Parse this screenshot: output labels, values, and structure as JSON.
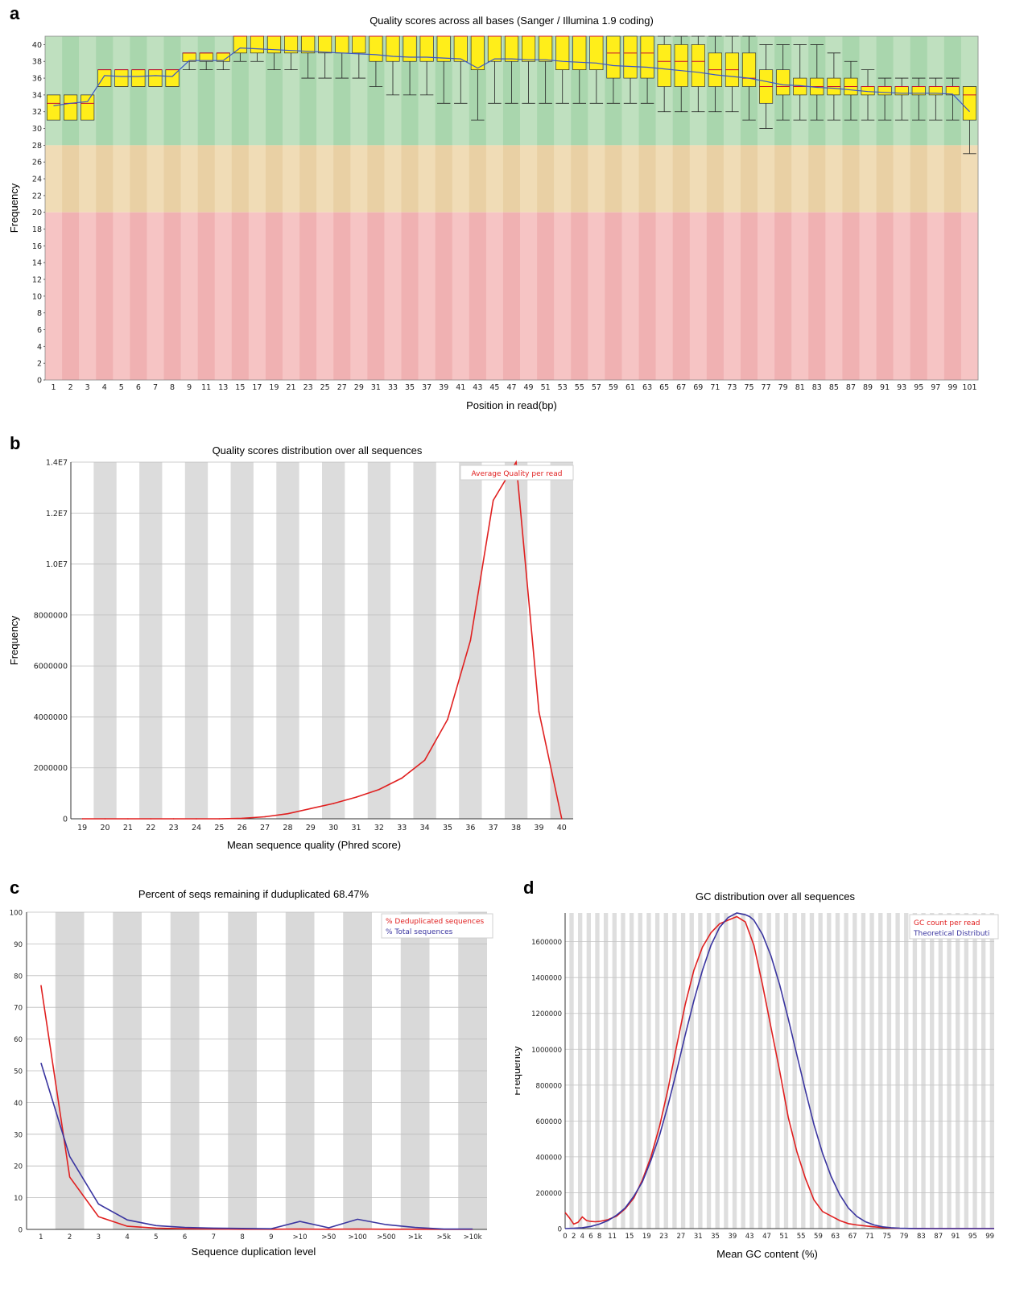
{
  "chart_data": [
    {
      "panel": "a",
      "type": "boxplot",
      "title": "Quality scores across all bases (Sanger / Illumina 1.9 coding)",
      "xlabel": "Position in read(bp)",
      "ylabel": "Frequency",
      "ylim": [
        0,
        41
      ],
      "yticks": [
        0,
        2,
        4,
        6,
        8,
        10,
        12,
        14,
        16,
        18,
        20,
        22,
        24,
        26,
        28,
        30,
        32,
        34,
        36,
        38,
        40
      ],
      "xtick_labels": [
        "1",
        "2",
        "3",
        "4",
        "5",
        "6",
        "7",
        "8",
        "9",
        "11",
        "13",
        "15",
        "17",
        "19",
        "21",
        "23",
        "25",
        "27",
        "29",
        "31",
        "33",
        "35",
        "37",
        "39",
        "41",
        "43",
        "45",
        "47",
        "49",
        "51",
        "53",
        "55",
        "57",
        "59",
        "61",
        "63",
        "65",
        "67",
        "69",
        "71",
        "73",
        "75",
        "77",
        "79",
        "81",
        "83",
        "85",
        "87",
        "89",
        "91",
        "93",
        "95",
        "97",
        "99",
        "101"
      ],
      "zones": [
        {
          "from": 28,
          "to": 41,
          "color": "#bfe0bf",
          "alt_color": "#a9d6ad"
        },
        {
          "from": 20,
          "to": 28,
          "color": "#f0dcb6",
          "alt_color": "#e9d0a4"
        },
        {
          "from": 0,
          "to": 20,
          "color": "#f6c4c4",
          "alt_color": "#f0b1b2"
        }
      ],
      "box_color": "#ffee1a",
      "median_color": "#c8102e",
      "mean_color": "#3b55c6",
      "boxes": [
        {
          "q1": 31,
          "q3": 34,
          "med": 33,
          "lo": 31,
          "hi": 34,
          "mean": 32.7
        },
        {
          "q1": 31,
          "q3": 34,
          "med": 33,
          "lo": 31,
          "hi": 34,
          "mean": 33.0
        },
        {
          "q1": 31,
          "q3": 34,
          "med": 33,
          "lo": 31,
          "hi": 34,
          "mean": 33.2
        },
        {
          "q1": 35,
          "q3": 37,
          "med": 37,
          "lo": 35,
          "hi": 37,
          "mean": 36.3
        },
        {
          "q1": 35,
          "q3": 37,
          "med": 37,
          "lo": 35,
          "hi": 37,
          "mean": 36.2
        },
        {
          "q1": 35,
          "q3": 37,
          "med": 37,
          "lo": 35,
          "hi": 37,
          "mean": 36.2
        },
        {
          "q1": 35,
          "q3": 37,
          "med": 37,
          "lo": 35,
          "hi": 37,
          "mean": 36.3
        },
        {
          "q1": 35,
          "q3": 37,
          "med": 37,
          "lo": 35,
          "hi": 37,
          "mean": 36.2
        },
        {
          "q1": 38,
          "q3": 39,
          "med": 39,
          "lo": 37,
          "hi": 39,
          "mean": 38.1
        },
        {
          "q1": 38,
          "q3": 39,
          "med": 39,
          "lo": 37,
          "hi": 39,
          "mean": 38.1
        },
        {
          "q1": 38,
          "q3": 39,
          "med": 39,
          "lo": 37,
          "hi": 39,
          "mean": 38.1
        },
        {
          "q1": 39,
          "q3": 41,
          "med": 41,
          "lo": 38,
          "hi": 41,
          "mean": 39.6
        },
        {
          "q1": 39,
          "q3": 41,
          "med": 41,
          "lo": 38,
          "hi": 41,
          "mean": 39.5
        },
        {
          "q1": 39,
          "q3": 41,
          "med": 41,
          "lo": 37,
          "hi": 41,
          "mean": 39.4
        },
        {
          "q1": 39,
          "q3": 41,
          "med": 41,
          "lo": 37,
          "hi": 41,
          "mean": 39.3
        },
        {
          "q1": 39,
          "q3": 41,
          "med": 41,
          "lo": 36,
          "hi": 41,
          "mean": 39.2
        },
        {
          "q1": 39,
          "q3": 41,
          "med": 41,
          "lo": 36,
          "hi": 41,
          "mean": 39.1
        },
        {
          "q1": 39,
          "q3": 41,
          "med": 41,
          "lo": 36,
          "hi": 41,
          "mean": 39.0
        },
        {
          "q1": 39,
          "q3": 41,
          "med": 41,
          "lo": 36,
          "hi": 41,
          "mean": 38.9
        },
        {
          "q1": 38,
          "q3": 41,
          "med": 41,
          "lo": 35,
          "hi": 41,
          "mean": 38.8
        },
        {
          "q1": 38,
          "q3": 41,
          "med": 41,
          "lo": 34,
          "hi": 41,
          "mean": 38.6
        },
        {
          "q1": 38,
          "q3": 41,
          "med": 41,
          "lo": 34,
          "hi": 41,
          "mean": 38.5
        },
        {
          "q1": 38,
          "q3": 41,
          "med": 41,
          "lo": 34,
          "hi": 41,
          "mean": 38.5
        },
        {
          "q1": 38,
          "q3": 41,
          "med": 41,
          "lo": 33,
          "hi": 41,
          "mean": 38.4
        },
        {
          "q1": 38,
          "q3": 41,
          "med": 41,
          "lo": 33,
          "hi": 41,
          "mean": 38.3
        },
        {
          "q1": 37,
          "q3": 41,
          "med": 41,
          "lo": 31,
          "hi": 41,
          "mean": 37.2
        },
        {
          "q1": 38,
          "q3": 41,
          "med": 41,
          "lo": 33,
          "hi": 41,
          "mean": 38.3
        },
        {
          "q1": 38,
          "q3": 41,
          "med": 41,
          "lo": 33,
          "hi": 41,
          "mean": 38.3
        },
        {
          "q1": 38,
          "q3": 41,
          "med": 41,
          "lo": 33,
          "hi": 41,
          "mean": 38.2
        },
        {
          "q1": 38,
          "q3": 41,
          "med": 41,
          "lo": 33,
          "hi": 41,
          "mean": 38.2
        },
        {
          "q1": 37,
          "q3": 41,
          "med": 41,
          "lo": 33,
          "hi": 41,
          "mean": 38.0
        },
        {
          "q1": 37,
          "q3": 41,
          "med": 41,
          "lo": 33,
          "hi": 41,
          "mean": 37.9
        },
        {
          "q1": 37,
          "q3": 41,
          "med": 41,
          "lo": 33,
          "hi": 41,
          "mean": 37.8
        },
        {
          "q1": 36,
          "q3": 41,
          "med": 39,
          "lo": 33,
          "hi": 41,
          "mean": 37.5
        },
        {
          "q1": 36,
          "q3": 41,
          "med": 39,
          "lo": 33,
          "hi": 41,
          "mean": 37.4
        },
        {
          "q1": 36,
          "q3": 41,
          "med": 39,
          "lo": 33,
          "hi": 41,
          "mean": 37.3
        },
        {
          "q1": 35,
          "q3": 40,
          "med": 38,
          "lo": 32,
          "hi": 41,
          "mean": 37.1
        },
        {
          "q1": 35,
          "q3": 40,
          "med": 38,
          "lo": 32,
          "hi": 41,
          "mean": 36.9
        },
        {
          "q1": 35,
          "q3": 40,
          "med": 38,
          "lo": 32,
          "hi": 41,
          "mean": 36.7
        },
        {
          "q1": 35,
          "q3": 39,
          "med": 37,
          "lo": 32,
          "hi": 41,
          "mean": 36.4
        },
        {
          "q1": 35,
          "q3": 39,
          "med": 37,
          "lo": 32,
          "hi": 41,
          "mean": 36.2
        },
        {
          "q1": 35,
          "q3": 39,
          "med": 36,
          "lo": 31,
          "hi": 41,
          "mean": 36.0
        },
        {
          "q1": 33,
          "q3": 37,
          "med": 35,
          "lo": 30,
          "hi": 40,
          "mean": 35.6
        },
        {
          "q1": 34,
          "q3": 37,
          "med": 35,
          "lo": 31,
          "hi": 40,
          "mean": 35.2
        },
        {
          "q1": 34,
          "q3": 36,
          "med": 35,
          "lo": 31,
          "hi": 40,
          "mean": 35.1
        },
        {
          "q1": 34,
          "q3": 36,
          "med": 35,
          "lo": 31,
          "hi": 40,
          "mean": 34.9
        },
        {
          "q1": 34,
          "q3": 36,
          "med": 35,
          "lo": 31,
          "hi": 39,
          "mean": 34.8
        },
        {
          "q1": 34,
          "q3": 36,
          "med": 35,
          "lo": 31,
          "hi": 38,
          "mean": 34.6
        },
        {
          "q1": 34,
          "q3": 35,
          "med": 35,
          "lo": 31,
          "hi": 37,
          "mean": 34.4
        },
        {
          "q1": 34,
          "q3": 35,
          "med": 35,
          "lo": 31,
          "hi": 36,
          "mean": 34.3
        },
        {
          "q1": 34,
          "q3": 35,
          "med": 35,
          "lo": 31,
          "hi": 36,
          "mean": 34.2
        },
        {
          "q1": 34,
          "q3": 35,
          "med": 35,
          "lo": 31,
          "hi": 36,
          "mean": 34.2
        },
        {
          "q1": 34,
          "q3": 35,
          "med": 35,
          "lo": 31,
          "hi": 36,
          "mean": 34.2
        },
        {
          "q1": 34,
          "q3": 35,
          "med": 35,
          "lo": 31,
          "hi": 36,
          "mean": 34.1
        },
        {
          "q1": 31,
          "q3": 35,
          "med": 34,
          "lo": 27,
          "hi": 35,
          "mean": 32.0
        }
      ]
    },
    {
      "panel": "b",
      "type": "line",
      "title": "Quality scores distribution over all sequences",
      "xlabel": "Mean sequence quality (Phred score)",
      "ylabel": "Frequency",
      "x": [
        19,
        20,
        21,
        22,
        23,
        24,
        25,
        26,
        27,
        28,
        29,
        30,
        31,
        32,
        33,
        34,
        35,
        36,
        37,
        38,
        39,
        40
      ],
      "xlim": [
        18.5,
        40.5
      ],
      "ylim": [
        0,
        14000000
      ],
      "ytick_values": [
        0,
        2000000,
        4000000,
        6000000,
        8000000,
        10000000,
        12000000,
        14000000
      ],
      "ytick_labels": [
        "0",
        "2000000",
        "4000000",
        "6000000",
        "8000000",
        "1.0E7",
        "1.2E7",
        "1.4E7"
      ],
      "series": [
        {
          "name": "Average Quality per read",
          "color": "#e02020",
          "values": [
            0,
            0,
            0,
            0,
            0,
            0,
            0,
            20000,
            80000,
            200000,
            400000,
            600000,
            850000,
            1150000,
            1600000,
            2300000,
            3900000,
            7000000,
            12500000,
            14000000,
            4200000,
            0
          ]
        }
      ],
      "legend": "top-right"
    },
    {
      "panel": "c",
      "type": "line",
      "title": "Percent of seqs remaining if duduplicated 68.47%",
      "xlabel": "Sequence duplication level",
      "ylabel": "",
      "categories": [
        "1",
        "2",
        "3",
        "4",
        "5",
        "6",
        "7",
        "8",
        "9",
        ">10",
        ">50",
        ">100",
        ">500",
        ">1k",
        ">5k",
        ">10k"
      ],
      "ylim": [
        0,
        100
      ],
      "yticks": [
        0,
        10,
        20,
        30,
        40,
        50,
        60,
        70,
        80,
        90,
        100
      ],
      "series": [
        {
          "name": "% Deduplicated sequences",
          "color": "#e02020",
          "values": [
            77,
            16.5,
            4,
            1,
            0.4,
            0.2,
            0.1,
            0.05,
            0.05,
            0.1,
            0.05,
            0.1,
            0.05,
            0.05,
            0.02,
            0.02
          ]
        },
        {
          "name": "% Total sequences",
          "color": "#3a35a0",
          "values": [
            52.5,
            23,
            8,
            3,
            1.2,
            0.6,
            0.4,
            0.3,
            0.2,
            2.5,
            0.5,
            3.2,
            1.5,
            0.6,
            0.1,
            0.1
          ]
        }
      ],
      "legend": "top-right"
    },
    {
      "panel": "d",
      "type": "line",
      "title": "GC distribution over all sequences",
      "xlabel": "Mean GC content (%)",
      "ylabel": "Frequency",
      "xlim": [
        0,
        100
      ],
      "ylim": [
        0,
        1760000
      ],
      "ytick_values": [
        0,
        200000,
        400000,
        600000,
        800000,
        1000000,
        1200000,
        1400000,
        1600000
      ],
      "xtick_labels": [
        "0",
        "2",
        "4",
        "6",
        "8",
        "11",
        "15",
        "19",
        "23",
        "27",
        "31",
        "35",
        "39",
        "43",
        "47",
        "51",
        "55",
        "59",
        "63",
        "67",
        "71",
        "75",
        "79",
        "83",
        "87",
        "91",
        "95",
        "99"
      ],
      "xtick_values": [
        0,
        2,
        4,
        6,
        8,
        11,
        15,
        19,
        23,
        27,
        31,
        35,
        39,
        43,
        47,
        51,
        55,
        59,
        63,
        67,
        71,
        75,
        79,
        83,
        87,
        91,
        95,
        99
      ],
      "series": [
        {
          "name": "GC count per read",
          "color": "#e02020",
          "x": [
            0,
            1,
            2,
            3,
            4,
            5,
            6,
            7,
            8,
            9,
            10,
            12,
            14,
            16,
            18,
            20,
            22,
            24,
            26,
            28,
            30,
            32,
            34,
            36,
            38,
            40,
            42,
            44,
            46,
            48,
            50,
            52,
            54,
            56,
            58,
            60,
            62,
            64,
            66,
            68,
            70,
            72,
            74,
            76,
            78,
            80,
            82,
            85,
            90,
            95,
            100
          ],
          "values": [
            90000,
            60000,
            25000,
            35000,
            65000,
            45000,
            40000,
            38000,
            40000,
            45000,
            50000,
            70000,
            110000,
            170000,
            270000,
            400000,
            570000,
            780000,
            1020000,
            1250000,
            1440000,
            1570000,
            1650000,
            1700000,
            1720000,
            1740000,
            1710000,
            1580000,
            1360000,
            1120000,
            880000,
            620000,
            430000,
            280000,
            160000,
            95000,
            70000,
            45000,
            28000,
            20000,
            15000,
            10000,
            6000,
            3000,
            1500,
            800,
            300,
            100,
            0,
            0,
            0
          ]
        },
        {
          "name": "Theoretical Distributi",
          "color": "#3a35a0",
          "x": [
            0,
            2,
            4,
            6,
            8,
            10,
            12,
            14,
            16,
            18,
            20,
            22,
            24,
            26,
            28,
            30,
            32,
            34,
            36,
            38,
            40,
            42,
            43,
            44,
            46,
            48,
            50,
            52,
            54,
            56,
            58,
            60,
            62,
            64,
            66,
            68,
            70,
            72,
            74,
            76,
            78,
            80,
            82,
            85,
            90,
            95,
            100
          ],
          "values": [
            0,
            2000,
            5000,
            12000,
            25000,
            45000,
            75000,
            115000,
            180000,
            260000,
            380000,
            520000,
            690000,
            880000,
            1080000,
            1270000,
            1440000,
            1580000,
            1680000,
            1735000,
            1760000,
            1750000,
            1740000,
            1720000,
            1640000,
            1520000,
            1360000,
            1170000,
            970000,
            770000,
            580000,
            420000,
            290000,
            190000,
            115000,
            68000,
            38000,
            20000,
            10000,
            5000,
            2000,
            900,
            400,
            100,
            0,
            0,
            0
          ]
        }
      ],
      "legend": "top-right"
    }
  ],
  "panel_labels": {
    "a": "a",
    "b": "b",
    "c": "c",
    "d": "d"
  }
}
